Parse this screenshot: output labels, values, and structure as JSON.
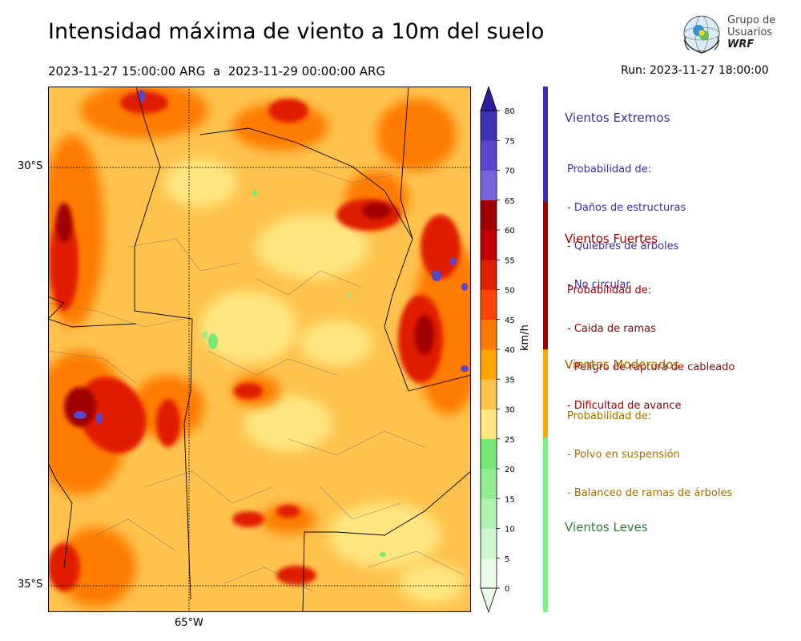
{
  "header": {
    "title": "Intensidad máxima de viento a 10m del suelo",
    "period_start": "2023-11-27 15:00:00 ARG",
    "period_sep": "a",
    "period_end": "2023-11-29 00:00:00 ARG",
    "run": "Run: 2023-11-27 18:00:00"
  },
  "logo": {
    "line1": "Grupo de",
    "line2": "Usuarios",
    "line3": "WRF"
  },
  "map": {
    "lat_labels": [
      "30°S",
      "35°S"
    ],
    "lon_labels": [
      "65°W"
    ]
  },
  "colorbar": {
    "unit": "km/h",
    "ticks": [
      "0",
      "5",
      "10",
      "15",
      "20",
      "25",
      "30",
      "35",
      "40",
      "45",
      "50",
      "55",
      "60",
      "65",
      "70",
      "75",
      "80"
    ],
    "colors": [
      "#e8fce8",
      "#cdf7cd",
      "#b0f2b0",
      "#93ed93",
      "#76e876",
      "#ffe680",
      "#ffc34d",
      "#ffa500",
      "#ff7b00",
      "#ff4500",
      "#e01e00",
      "#c00000",
      "#a00000",
      "#7a64dc",
      "#5a46cd",
      "#4032b4",
      "#2c1e9a"
    ]
  },
  "categories": [
    {
      "title": "Vientos Extremos",
      "color": "#3c2ea8",
      "desc": [
        "Probabilidad de:",
        "- Daños de estructuras",
        "- Quiebres de árboles",
        "- No circular"
      ]
    },
    {
      "title": "Vientos Fuertes",
      "color": "#a00000",
      "desc": [
        "Probabilidad de:",
        "- Caida de ramas",
        "- Peligro de ruptura de cableado",
        "- Dificultad de avance"
      ]
    },
    {
      "title": "Vientos Moderados",
      "color": "#a86b00",
      "bar_color": "#ffa500",
      "desc": [
        "Probabilidad de:",
        "- Polvo en suspensión",
        "- Balanceo de ramas de árboles"
      ]
    },
    {
      "title": "Vientos Leves",
      "color": "#2e7d32",
      "bar_color": "#76f576",
      "desc": []
    }
  ]
}
